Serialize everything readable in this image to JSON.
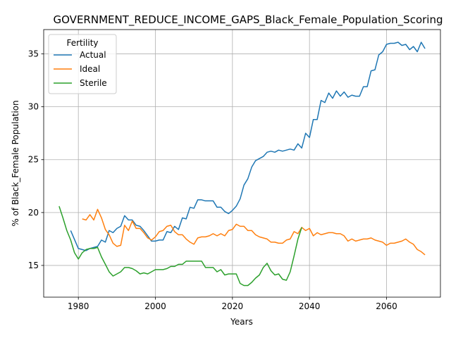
{
  "chart_data": {
    "type": "line",
    "title": "GOVERNMENT_REDUCE_INCOME_GAPS_Black_Female_Population_Scoring",
    "xlabel": "Years",
    "ylabel": "% of Black_Female Population",
    "xlim": [
      1971,
      2074
    ],
    "ylim": [
      12,
      37.3
    ],
    "xticks": [
      1980,
      2000,
      2020,
      2040,
      2060
    ],
    "yticks": [
      15,
      20,
      25,
      30,
      35
    ],
    "grid": true,
    "legend": {
      "title": "Fertility",
      "position": "upper-left"
    },
    "series": [
      {
        "name": "Actual",
        "color": "#1f77b4",
        "x": [
          1978,
          1980,
          1981,
          1982,
          1983,
          1984,
          1985,
          1986,
          1987,
          1988,
          1989,
          1990,
          1991,
          1992,
          1993,
          1994,
          1995,
          1996,
          1997,
          1998,
          1999,
          2000,
          2001,
          2002,
          2003,
          2004,
          2005,
          2006,
          2007,
          2008,
          2009,
          2010,
          2011,
          2012,
          2013,
          2014,
          2015,
          2016,
          2017,
          2018,
          2019,
          2020,
          2021,
          2022,
          2023,
          2024,
          2025,
          2026,
          2027,
          2028,
          2029,
          2030,
          2031,
          2032,
          2033,
          2034,
          2035,
          2036,
          2037,
          2038,
          2039,
          2040,
          2041,
          2042,
          2043,
          2044,
          2045,
          2046,
          2047,
          2048,
          2049,
          2050,
          2051,
          2052,
          2053,
          2054,
          2055,
          2056,
          2057,
          2058,
          2059,
          2060,
          2061,
          2062,
          2063,
          2064,
          2065,
          2066,
          2067,
          2068,
          2069,
          2070
        ],
        "y": [
          18.3,
          16.6,
          16.5,
          16.4,
          16.6,
          16.7,
          16.8,
          17.4,
          17.2,
          18.3,
          18.1,
          18.5,
          18.7,
          19.7,
          19.3,
          19.3,
          18.8,
          18.7,
          18.3,
          17.8,
          17.3,
          17.3,
          17.4,
          17.4,
          18.2,
          18.1,
          18.7,
          18.4,
          19.5,
          19.4,
          20.5,
          20.4,
          21.2,
          21.2,
          21.1,
          21.1,
          21.1,
          20.5,
          20.5,
          20.1,
          19.9,
          20.2,
          20.6,
          21.3,
          22.6,
          23.2,
          24.3,
          24.9,
          25.1,
          25.3,
          25.7,
          25.8,
          25.7,
          25.9,
          25.8,
          25.9,
          26.0,
          25.9,
          26.5,
          26.1,
          27.5,
          27.1,
          28.8,
          28.8,
          30.6,
          30.4,
          31.3,
          30.8,
          31.5,
          31.0,
          31.4,
          30.9,
          31.1,
          31.0,
          31.0,
          31.9,
          31.9,
          33.4,
          33.5,
          34.9,
          35.2,
          35.9,
          36.0,
          36.0,
          36.1,
          35.8,
          35.9,
          35.4,
          35.7,
          35.2,
          36.1,
          35.5
        ]
      },
      {
        "name": "Ideal",
        "color": "#ff7f0e",
        "x": [
          1981,
          1982,
          1983,
          1984,
          1985,
          1986,
          1987,
          1988,
          1989,
          1990,
          1991,
          1992,
          1993,
          1994,
          1995,
          1996,
          1997,
          1998,
          1999,
          2000,
          2001,
          2002,
          2003,
          2004,
          2005,
          2006,
          2007,
          2008,
          2009,
          2010,
          2011,
          2012,
          2013,
          2014,
          2015,
          2016,
          2017,
          2018,
          2019,
          2020,
          2021,
          2022,
          2023,
          2024,
          2025,
          2026,
          2027,
          2028,
          2029,
          2030,
          2031,
          2032,
          2033,
          2034,
          2035,
          2036,
          2037,
          2038,
          2039,
          2040,
          2041,
          2042,
          2043,
          2044,
          2045,
          2046,
          2047,
          2048,
          2049,
          2050,
          2051,
          2052,
          2053,
          2054,
          2055,
          2056,
          2057,
          2058,
          2059,
          2060,
          2061,
          2062,
          2063,
          2064,
          2065,
          2066,
          2067,
          2068,
          2069,
          2070
        ],
        "y": [
          19.4,
          19.3,
          19.8,
          19.3,
          20.3,
          19.5,
          18.4,
          17.9,
          17.1,
          16.8,
          16.9,
          18.8,
          18.3,
          19.2,
          18.5,
          18.5,
          18.1,
          17.6,
          17.4,
          17.7,
          18.2,
          18.3,
          18.7,
          18.8,
          18.2,
          17.9,
          17.9,
          17.5,
          17.2,
          17.0,
          17.6,
          17.7,
          17.7,
          17.8,
          18.0,
          17.8,
          18.0,
          17.8,
          18.3,
          18.4,
          18.9,
          18.7,
          18.7,
          18.3,
          18.3,
          17.9,
          17.7,
          17.6,
          17.5,
          17.2,
          17.2,
          17.1,
          17.1,
          17.4,
          17.5,
          18.2,
          18.0,
          18.6,
          18.3,
          18.5,
          17.8,
          18.1,
          17.9,
          18.0,
          18.1,
          18.1,
          18.0,
          18.0,
          17.8,
          17.3,
          17.5,
          17.3,
          17.4,
          17.5,
          17.5,
          17.6,
          17.4,
          17.3,
          17.2,
          16.9,
          17.1,
          17.1,
          17.2,
          17.3,
          17.5,
          17.2,
          17.0,
          16.5,
          16.3,
          16.0
        ]
      },
      {
        "name": "Sterile",
        "color": "#2ca02c",
        "x": [
          1975,
          1976,
          1977,
          1978,
          1979,
          1980,
          1981,
          1982,
          1983,
          1984,
          1985,
          1986,
          1987,
          1988,
          1989,
          1990,
          1991,
          1992,
          1993,
          1994,
          1995,
          1996,
          1997,
          1998,
          1999,
          2000,
          2001,
          2002,
          2003,
          2004,
          2005,
          2006,
          2007,
          2008,
          2009,
          2010,
          2011,
          2012,
          2013,
          2014,
          2015,
          2016,
          2017,
          2018,
          2019,
          2020,
          2021,
          2022,
          2023,
          2024,
          2025,
          2026,
          2027,
          2028,
          2029,
          2030,
          2031,
          2032,
          2033,
          2034,
          2035,
          2036,
          2037,
          2038
        ],
        "y": [
          20.6,
          19.5,
          18.3,
          17.4,
          16.2,
          15.6,
          16.2,
          16.5,
          16.6,
          16.6,
          16.7,
          15.8,
          15.1,
          14.4,
          14.0,
          14.2,
          14.4,
          14.8,
          14.8,
          14.7,
          14.5,
          14.2,
          14.3,
          14.2,
          14.4,
          14.6,
          14.6,
          14.6,
          14.7,
          14.9,
          14.9,
          15.1,
          15.1,
          15.4,
          15.4,
          15.4,
          15.4,
          15.4,
          14.8,
          14.8,
          14.8,
          14.4,
          14.6,
          14.1,
          14.2,
          14.2,
          14.2,
          13.3,
          13.1,
          13.1,
          13.4,
          13.8,
          14.1,
          14.8,
          15.2,
          14.5,
          14.1,
          14.2,
          13.7,
          13.6,
          14.4,
          15.9,
          17.5,
          18.6
        ]
      }
    ]
  }
}
